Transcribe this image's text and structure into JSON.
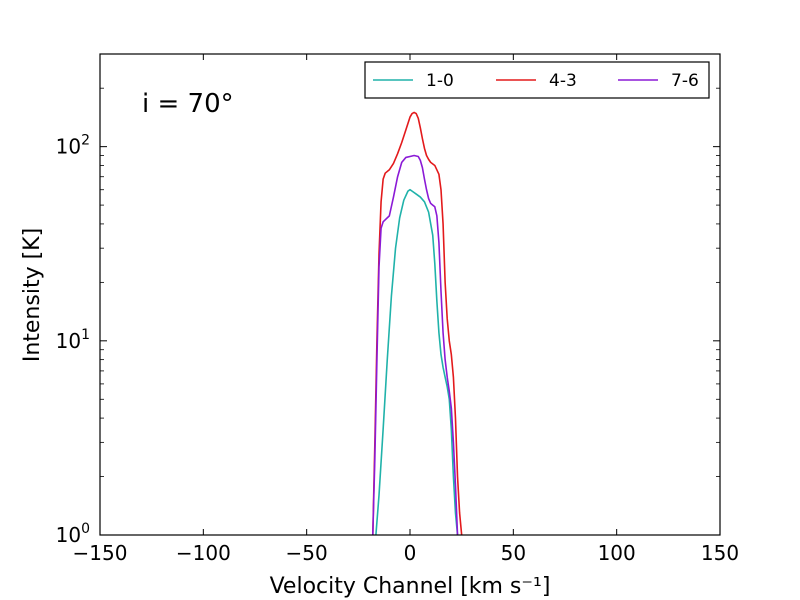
{
  "chart_data": {
    "type": "line",
    "title": "",
    "annotation": "i = 70°",
    "xlabel": "Velocity Channel [km s⁻¹]",
    "ylabel": "Intensity [K]",
    "xlim": [
      -150,
      150
    ],
    "ylim": [
      1,
      300
    ],
    "yscale": "log",
    "grid": false,
    "legend_position": "top-right",
    "x_ticks": [
      -150,
      -100,
      -50,
      0,
      50,
      100,
      150
    ],
    "x_tick_labels": [
      "−150",
      "−100",
      "−50",
      "0",
      "50",
      "100",
      "150"
    ],
    "y_ticks": [
      1,
      10,
      100
    ],
    "y_tick_labels": [
      "10",
      "10",
      "10"
    ],
    "y_tick_exponents": [
      "0",
      "1",
      "2"
    ],
    "series": [
      {
        "name": "1-0",
        "color": "#20b2aa",
        "x": [
          -16.5,
          -15,
          -13,
          -11,
          -9,
          -7,
          -5,
          -3,
          -1,
          0,
          1,
          3,
          5,
          7,
          9,
          11,
          12,
          13,
          14,
          15,
          16,
          17,
          18,
          19,
          20,
          21,
          22,
          23
        ],
        "y": [
          1.0,
          1.6,
          3.5,
          8.0,
          17,
          30,
          43,
          53,
          59,
          60,
          59,
          57,
          55,
          52,
          46,
          35,
          25,
          16,
          11,
          8.5,
          7.3,
          6.5,
          5.8,
          5.0,
          3.5,
          2.0,
          1.3,
          1.0
        ]
      },
      {
        "name": "4-3",
        "color": "#e31a1c",
        "x": [
          -18,
          -17,
          -16,
          -15,
          -14,
          -13,
          -12,
          -10,
          -8,
          -6,
          -4,
          -2,
          0,
          1,
          2,
          3,
          4,
          5,
          6,
          7,
          8,
          9,
          10,
          12,
          14,
          15,
          16,
          17,
          18,
          19,
          20,
          21,
          22,
          23,
          24,
          25
        ],
        "y": [
          1.0,
          3.0,
          10,
          28,
          52,
          68,
          73,
          76,
          82,
          92,
          105,
          122,
          142,
          148,
          150,
          148,
          140,
          125,
          110,
          98,
          90,
          86,
          83,
          80,
          72,
          60,
          40,
          20,
          13,
          10,
          8.5,
          6.5,
          4.0,
          2.0,
          1.3,
          1.0
        ]
      },
      {
        "name": "7-6",
        "color": "#8b1ad6",
        "x": [
          -18,
          -17,
          -16,
          -15,
          -14,
          -13,
          -12,
          -10,
          -8,
          -6,
          -4,
          -2,
          0,
          2,
          4,
          5,
          6,
          7,
          8,
          9,
          10,
          11,
          12,
          13,
          14,
          15,
          16,
          17,
          18,
          19,
          20,
          21,
          22,
          23
        ],
        "y": [
          1.0,
          2.5,
          8.0,
          24,
          38,
          41,
          42,
          44,
          55,
          70,
          83,
          88,
          89,
          90,
          89,
          85,
          78,
          68,
          60,
          54,
          51,
          50,
          49,
          44,
          32,
          18,
          11,
          8,
          6.5,
          5.5,
          4.5,
          3.0,
          1.8,
          1.0
        ]
      }
    ]
  }
}
